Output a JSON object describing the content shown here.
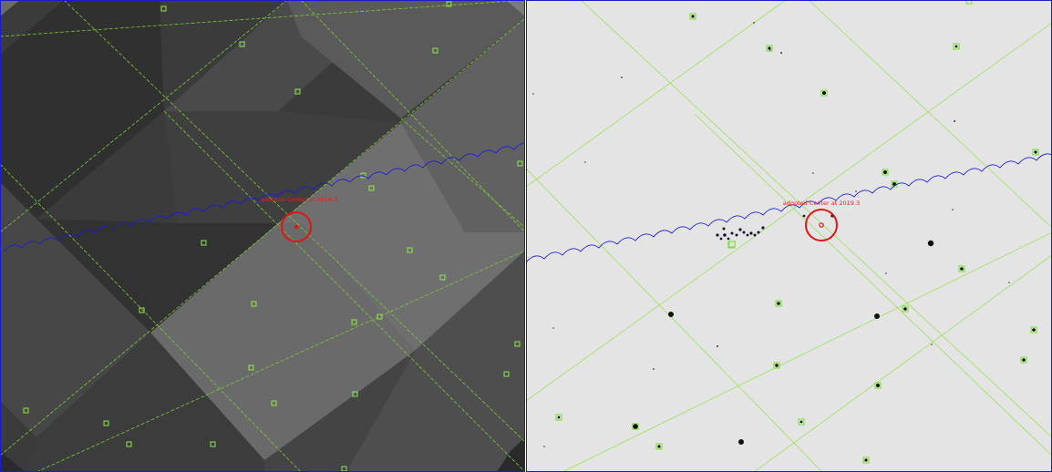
{
  "panels": [
    {
      "id": "left",
      "kind": "survey-mosaic-tiles",
      "center_label": "adopted Center at 2019.3",
      "colors": {
        "background": "#3a3a3a",
        "grid": "#7ec83a",
        "track": "#1a1adc",
        "center_marker": "#e01515",
        "frame": "#1a1ad0"
      }
    },
    {
      "id": "right",
      "kind": "inverted-star-field",
      "center_label": "adopted Center at 2019.3",
      "colors": {
        "background": "#e6e6e6",
        "grid": "#9ee05a",
        "track": "#1a1adc",
        "center_marker": "#e01515",
        "star": "#111111",
        "frame": "#1a1ad0"
      }
    }
  ]
}
